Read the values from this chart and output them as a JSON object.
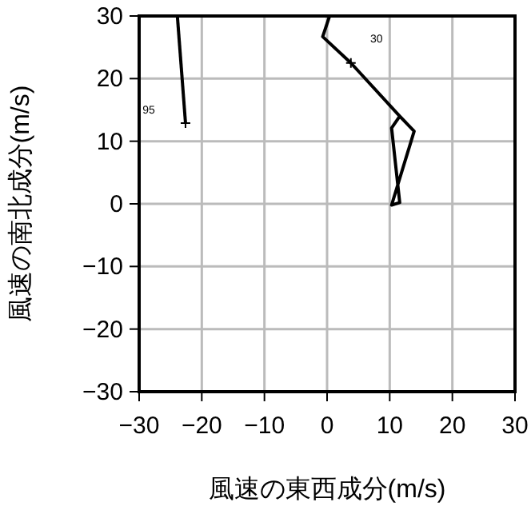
{
  "chart_data": {
    "type": "line",
    "xlabel": "風速の東西成分(m/s)",
    "ylabel": "風速の南北成分(m/s)",
    "xlim": [
      -30,
      30
    ],
    "ylim": [
      -30,
      30
    ],
    "xticks": [
      -30,
      -20,
      -10,
      0,
      10,
      20,
      30
    ],
    "yticks": [
      -30,
      -20,
      -10,
      0,
      10,
      20,
      30
    ],
    "grid": true,
    "series": [
      {
        "color": "#000000",
        "x": [
          -23.9,
          -22.6
        ],
        "values": [
          30,
          12.9
        ]
      },
      {
        "color": "#000000",
        "x": [
          0.4,
          -0.7,
          3.8,
          11.6,
          13.9,
          10.3,
          11.6,
          10.3,
          11.6
        ],
        "values": [
          30,
          26.7,
          22.5,
          14.0,
          11.6,
          -0.2,
          0.2,
          12.1,
          14.0
        ]
      },
      {
        "type": "scatter",
        "marker": "cross",
        "color": "#000000",
        "x": [
          -22.6,
          3.8
        ],
        "values": [
          12.9,
          22.5
        ]
      }
    ],
    "annotations": [
      "95",
      "30"
    ]
  }
}
